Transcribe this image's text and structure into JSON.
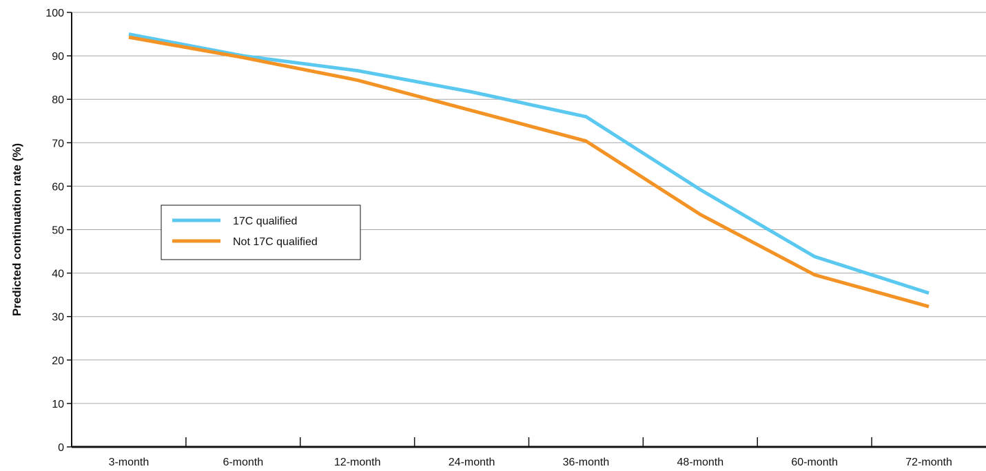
{
  "chart_data": {
    "type": "line",
    "title": "",
    "xlabel": "",
    "ylabel": "Predicted continuation rate (%)",
    "categories": [
      "3-month",
      "6-month",
      "12-month",
      "24-month",
      "36-month",
      "48-month",
      "60-month",
      "72-month"
    ],
    "ylim": [
      0,
      100
    ],
    "yticks": [
      "0",
      "10",
      "20",
      "30",
      "40",
      "50",
      "60",
      "70",
      "80",
      "90",
      "100"
    ],
    "grid": true,
    "legend_position": "middle-left",
    "series": [
      {
        "name": "17C qualified",
        "color": "#5bc8f0",
        "values": [
          95,
          90,
          86.6,
          81.7,
          76,
          59.2,
          43.8,
          35.4
        ]
      },
      {
        "name": "Not 17C qualified",
        "color": "#f39325",
        "values": [
          94.3,
          89.6,
          84.4,
          77.4,
          70.4,
          53.5,
          39.6,
          32.3
        ]
      }
    ]
  }
}
